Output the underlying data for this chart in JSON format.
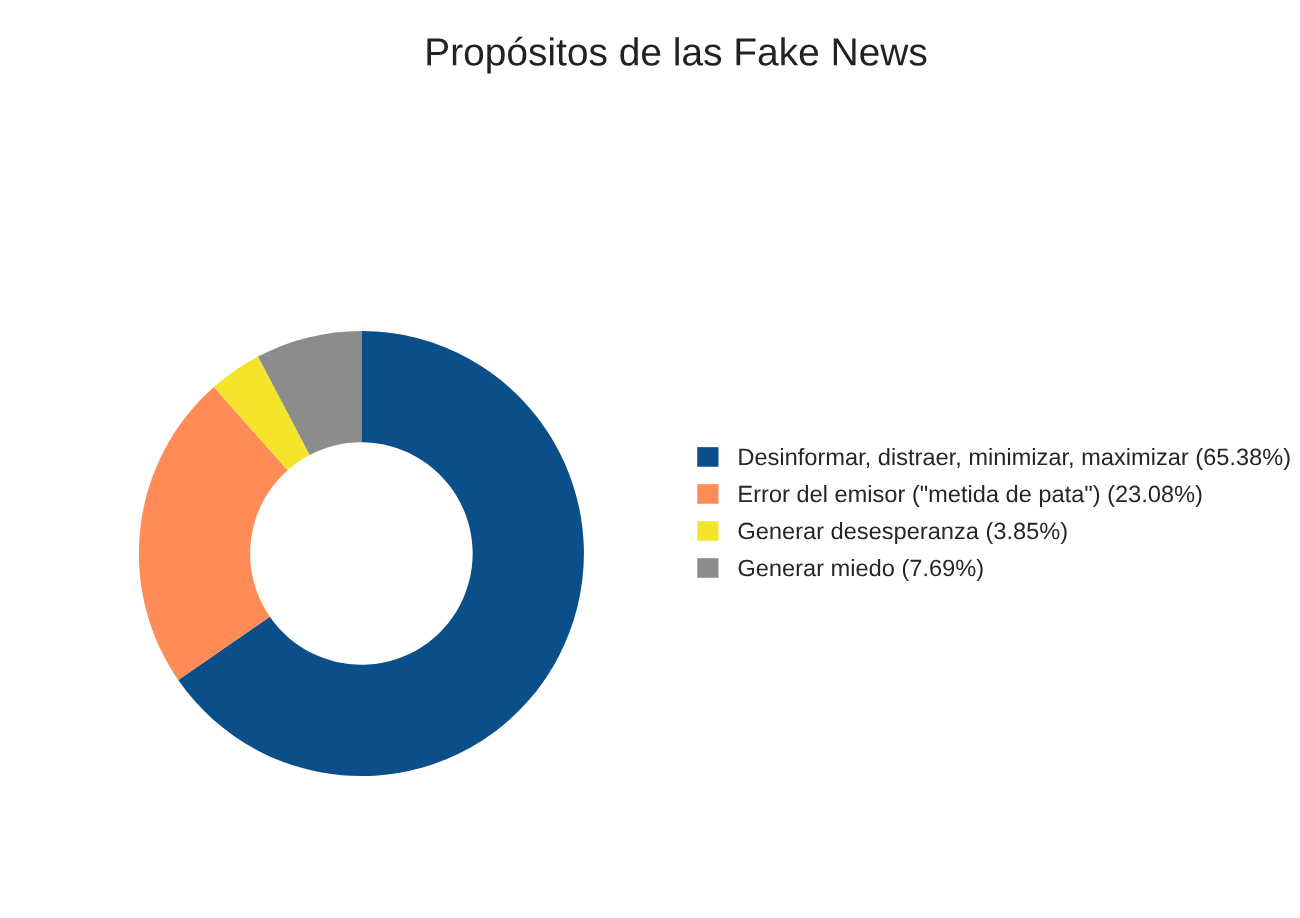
{
  "chart_data": {
    "type": "donut",
    "title": "Propósitos de las Fake News",
    "categories": [
      "Desinformar, distraer, minimizar, maximizar (65.38%)",
      "Error del emisor (\"metida de pata\") (23.08%)",
      "Generar desesperanza (3.85%)",
      "Generar miedo (7.69%)"
    ],
    "values": [
      65.38,
      23.08,
      3.85,
      7.69
    ],
    "colors": [
      "#0b4f8a",
      "#ff8c57",
      "#f5e42c",
      "#8c8c8c"
    ],
    "legend": "right"
  }
}
